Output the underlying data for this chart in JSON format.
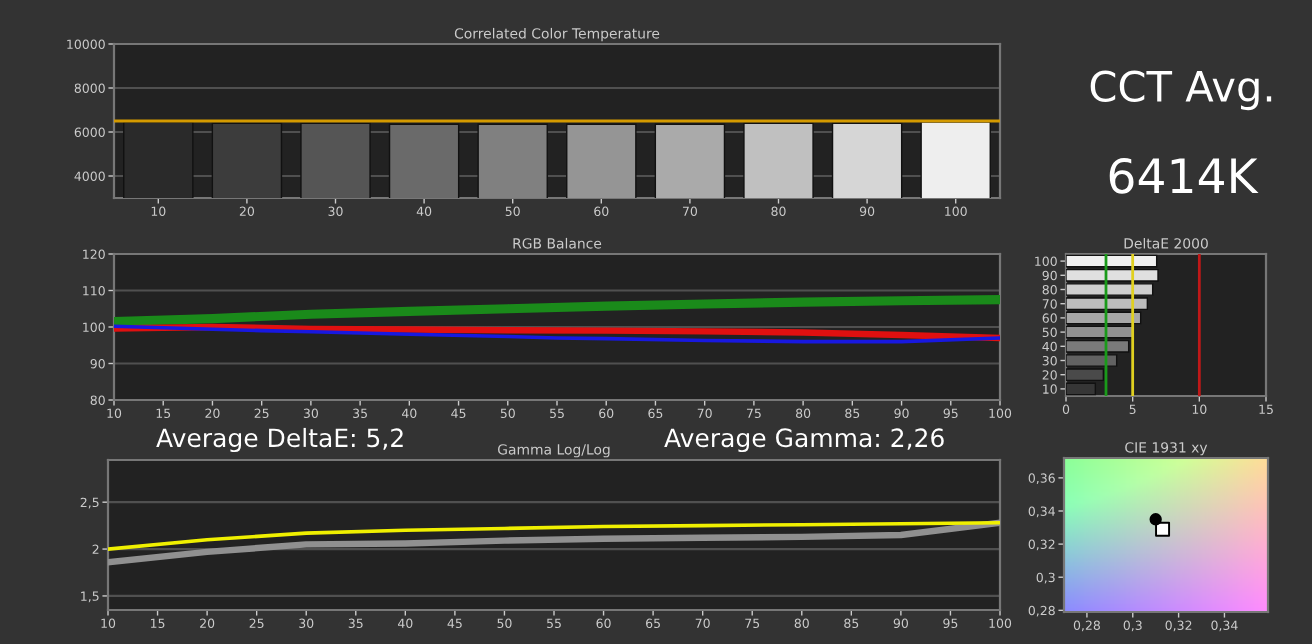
{
  "chart_data": [
    {
      "type": "bar",
      "title": "Correlated Color Temperature",
      "categories": [
        "10",
        "20",
        "30",
        "40",
        "50",
        "60",
        "70",
        "80",
        "90",
        "100"
      ],
      "values": [
        6450,
        6400,
        6400,
        6350,
        6350,
        6350,
        6350,
        6400,
        6400,
        6450
      ],
      "colors": [
        "#2a2a2a",
        "#3c3c3c",
        "#555555",
        "#6a6a6a",
        "#808080",
        "#959595",
        "#aaaaaa",
        "#c0c0c0",
        "#d6d6d6",
        "#eeeeee"
      ],
      "ylim": [
        3000,
        10000
      ],
      "yticks": [
        4000,
        6000,
        8000,
        10000
      ],
      "grid": "y",
      "legend": false,
      "ref_lines": [
        {
          "axis": "y",
          "value": 6500,
          "color": "#d49a00"
        }
      ]
    },
    {
      "type": "line",
      "title": "RGB Balance",
      "xlim": [
        10,
        100
      ],
      "xticks": [
        10,
        15,
        20,
        25,
        30,
        35,
        40,
        45,
        50,
        55,
        60,
        65,
        70,
        75,
        80,
        85,
        90,
        95,
        100
      ],
      "ylim": [
        80,
        120
      ],
      "yticks": [
        80,
        90,
        100,
        110,
        120
      ],
      "grid": "y",
      "legend": false,
      "series": [
        {
          "color": "#1a8a1a",
          "x": [
            10,
            20,
            30,
            40,
            50,
            60,
            70,
            80,
            90,
            100
          ],
          "values": [
            101.5,
            102.3,
            103.5,
            104.3,
            105,
            105.7,
            106.3,
            106.8,
            107.2,
            107.5
          ]
        },
        {
          "color": "#e01010",
          "x": [
            10,
            20,
            30,
            40,
            50,
            60,
            70,
            80,
            90,
            100
          ],
          "values": [
            99.6,
            100,
            99.5,
            99.3,
            99.1,
            99,
            98.8,
            98.5,
            97.8,
            97
          ]
        },
        {
          "color": "#1818e0",
          "x": [
            10,
            20,
            25,
            30,
            40,
            50,
            55,
            60,
            70,
            80,
            90,
            100
          ],
          "values": [
            100.2,
            99.4,
            99,
            98.7,
            98,
            97.4,
            97,
            96.8,
            96.3,
            96,
            96,
            97
          ]
        }
      ]
    },
    {
      "type": "line",
      "title": "Gamma Log/Log",
      "xlim": [
        10,
        100
      ],
      "xticks": [
        10,
        15,
        20,
        25,
        30,
        35,
        40,
        45,
        50,
        55,
        60,
        65,
        70,
        75,
        80,
        85,
        90,
        95,
        100
      ],
      "ylim": [
        1.35,
        2.95
      ],
      "yticks": [
        {
          "value": 1.5,
          "label": "1,5"
        },
        2,
        {
          "value": 2.5,
          "label": "2,5"
        }
      ],
      "grid": "y",
      "legend": false,
      "series": [
        {
          "color": "#909090",
          "x": [
            10,
            20,
            30,
            40,
            50,
            60,
            70,
            80,
            90,
            100
          ],
          "values": [
            1.86,
            1.97,
            2.05,
            2.06,
            2.09,
            2.11,
            2.12,
            2.13,
            2.15,
            2.28
          ]
        },
        {
          "color": "#f0f000",
          "x": [
            10,
            20,
            30,
            40,
            50,
            60,
            70,
            80,
            90,
            100
          ],
          "values": [
            2.0,
            2.1,
            2.17,
            2.2,
            2.22,
            2.24,
            2.25,
            2.26,
            2.27,
            2.28
          ]
        }
      ]
    },
    {
      "type": "bar",
      "orientation": "horizontal",
      "title": "DeltaE 2000",
      "categories": [
        "100",
        "90",
        "80",
        "70",
        "60",
        "50",
        "40",
        "30",
        "20",
        "10"
      ],
      "values": [
        6.8,
        6.9,
        6.5,
        6.1,
        5.6,
        5.0,
        4.7,
        3.8,
        2.8,
        2.2
      ],
      "colors": [
        "#f0f0f0",
        "#e0e0e0",
        "#cfcfcf",
        "#bdbdbd",
        "#a8a8a8",
        "#929292",
        "#7a7a7a",
        "#626262",
        "#4a4a4a",
        "#363636"
      ],
      "xlim": [
        0,
        15
      ],
      "xticks": [
        0,
        5,
        10,
        15
      ],
      "grid": false,
      "legend": false,
      "ref_lines": [
        {
          "axis": "x",
          "value": 3,
          "color": "#1a9a1a"
        },
        {
          "axis": "x",
          "value": 5,
          "color": "#e0d020"
        },
        {
          "axis": "x",
          "value": 10,
          "color": "#c01818"
        }
      ]
    },
    {
      "type": "scatter",
      "title": "CIE 1931 xy",
      "xlim": [
        0.27,
        0.359
      ],
      "ylim": [
        0.279,
        0.372
      ],
      "xticks": [
        {
          "value": 0.28,
          "label": "0,28"
        },
        {
          "value": 0.3,
          "label": "0,3"
        },
        {
          "value": 0.32,
          "label": "0,32"
        },
        {
          "value": 0.34,
          "label": "0,34"
        }
      ],
      "yticks": [
        {
          "value": 0.28,
          "label": "0,28"
        },
        {
          "value": 0.3,
          "label": "0,3"
        },
        {
          "value": 0.32,
          "label": "0,32"
        },
        {
          "value": 0.34,
          "label": "0,34"
        },
        {
          "value": 0.36,
          "label": "0,36"
        }
      ],
      "grid": false,
      "legend": false,
      "series": [
        {
          "color": "#000000",
          "marker": "square",
          "x": [
            0.313
          ],
          "values": [
            0.329
          ]
        },
        {
          "color": "#000000",
          "marker": "circle",
          "x": [
            0.31
          ],
          "values": [
            0.335
          ]
        }
      ]
    },
    {
      "type": "other",
      "annotations": [
        "CCT Avg.",
        "6414K",
        "Average DeltaE: 5,2",
        "Average Gamma: 2,26"
      ]
    }
  ]
}
